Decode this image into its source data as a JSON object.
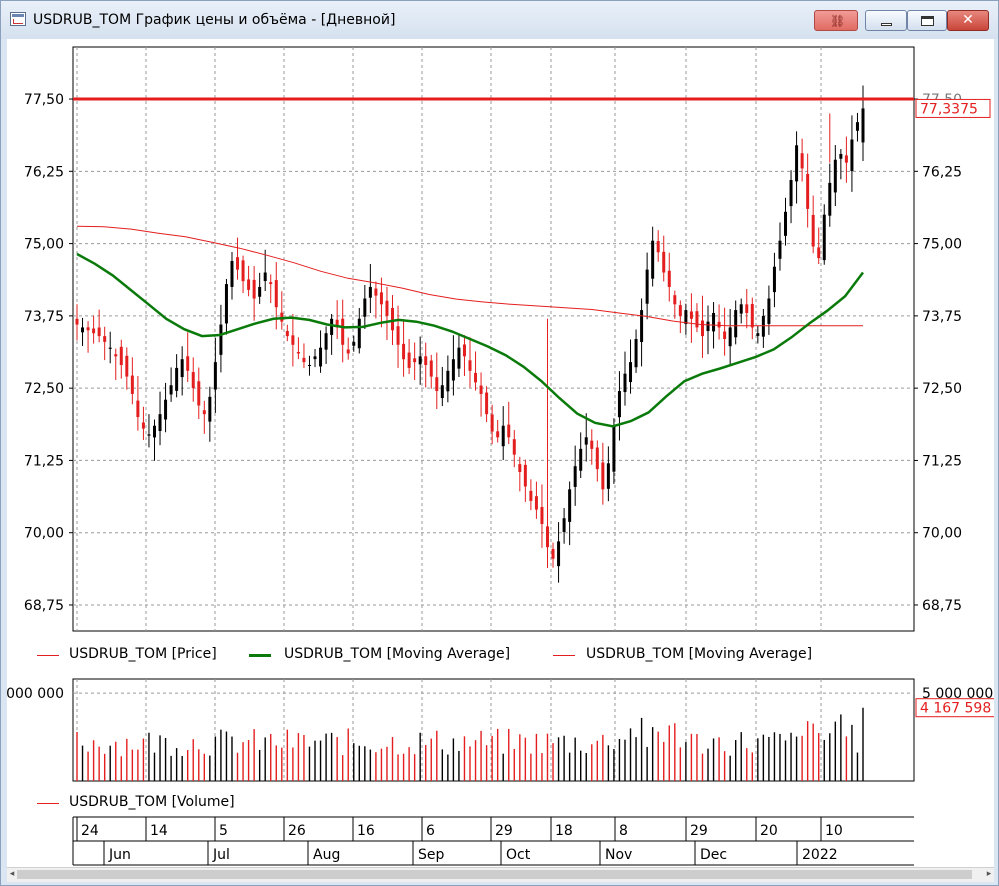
{
  "window": {
    "title": "USDRUB_TOM График цены и объёма - [Дневной]",
    "buttons": {
      "close": "✕"
    }
  },
  "colors": {
    "up": "#000000",
    "down": "#e41e1e",
    "ma_fast": "#0a7a0a",
    "ma_slow": "#e41e1e",
    "level": "#e41e1e",
    "grid": "#9a9a9a"
  },
  "price_panel": {
    "y_ticks": [
      "77,50",
      "76,25",
      "75,00",
      "73,75",
      "72,50",
      "71,25",
      "70,00",
      "68,75"
    ],
    "y_values": [
      77.5,
      76.25,
      75.0,
      73.75,
      72.5,
      71.25,
      70.0,
      68.75
    ],
    "ylim": [
      68.3,
      78.4
    ],
    "right_edge_label": "77,50",
    "last_price_label": "77,3375",
    "last_price": 77.3375,
    "horizontal_level": 77.5
  },
  "legend": {
    "price": "USDRUB_TOM [Price]",
    "ma1": "USDRUB_TOM [Moving Average]",
    "ma2": "USDRUB_TOM [Moving Average]"
  },
  "volume_panel": {
    "left_tick": "000 000",
    "right_tick": "5 000 000",
    "last_volume_label": "4 167 598",
    "legend": "USDRUB_TOM [Volume]",
    "ylim": [
      0,
      5800000
    ]
  },
  "time_axis": {
    "days": [
      "24",
      "14",
      "5",
      "26",
      "16",
      "6",
      "29",
      "18",
      "8",
      "29",
      "20",
      "10"
    ],
    "months": [
      "Jun",
      "Jul",
      "Aug",
      "Sep",
      "Oct",
      "Nov",
      "Dec",
      "2022"
    ]
  },
  "chart_data": {
    "type": "candlestick",
    "x_range": [
      "2021-05-24",
      "2022-01-14"
    ],
    "series": [
      {
        "name": "USDRUB_TOM [Price]",
        "kind": "ohlc",
        "close_path": [
          73.6,
          73.55,
          73.5,
          73.45,
          73.4,
          73.3,
          73.2,
          73.05,
          72.9,
          72.7,
          72.4,
          72.0,
          71.8,
          71.7,
          71.85,
          72.05,
          72.3,
          72.55,
          72.85,
          73.0,
          72.8,
          72.5,
          72.2,
          72.05,
          72.35,
          72.95,
          73.6,
          74.3,
          74.7,
          74.55,
          74.35,
          74.2,
          74.05,
          74.25,
          74.5,
          74.3,
          73.9,
          73.65,
          73.4,
          73.25,
          73.1,
          72.95,
          72.9,
          73.05,
          73.2,
          73.45,
          73.7,
          73.55,
          73.25,
          73.1,
          73.3,
          73.7,
          74.05,
          74.25,
          74.1,
          73.95,
          73.75,
          73.5,
          73.25,
          73.0,
          72.85,
          72.95,
          73.05,
          72.9,
          72.7,
          72.45,
          72.55,
          72.8,
          73.0,
          73.2,
          73.05,
          72.8,
          72.6,
          72.4,
          72.05,
          71.75,
          71.65,
          71.85,
          71.65,
          71.35,
          71.05,
          70.8,
          70.55,
          70.4,
          70.15,
          69.75,
          69.55,
          69.85,
          70.25,
          70.75,
          71.15,
          71.45,
          71.65,
          71.45,
          71.1,
          70.75,
          71.2,
          71.85,
          72.45,
          72.75,
          72.95,
          73.35,
          73.85,
          74.55,
          75.05,
          74.85,
          74.5,
          74.25,
          73.95,
          73.75,
          73.85,
          73.7,
          73.55,
          73.4,
          73.65,
          73.8,
          73.55,
          73.35,
          73.55,
          73.85,
          73.95,
          73.8,
          73.55,
          73.45,
          73.75,
          74.05,
          74.6,
          75.05,
          75.55,
          76.1,
          76.7,
          76.3,
          75.6,
          74.95,
          74.75,
          75.5,
          76.05,
          76.45,
          76.55,
          76.4,
          76.8,
          77.1,
          77.3375
        ]
      },
      {
        "name": "USDRUB_TOM [Moving Average]",
        "kind": "line",
        "color": "green",
        "values": [
          74.82,
          74.65,
          74.45,
          74.2,
          73.95,
          73.7,
          73.52,
          73.4,
          73.42,
          73.52,
          73.62,
          73.7,
          73.72,
          73.68,
          73.6,
          73.55,
          73.56,
          73.63,
          73.68,
          73.65,
          73.58,
          73.48,
          73.35,
          73.22,
          73.07,
          72.87,
          72.62,
          72.33,
          72.06,
          71.9,
          71.84,
          71.93,
          72.08,
          72.36,
          72.62,
          72.75,
          72.84,
          72.94,
          73.04,
          73.17,
          73.38,
          73.62,
          73.84,
          74.09,
          74.5
        ]
      },
      {
        "name": "USDRUB_TOM [Moving Average]",
        "kind": "line",
        "color": "red",
        "values": [
          75.3,
          75.29,
          75.25,
          75.18,
          75.12,
          75.02,
          74.92,
          74.8,
          74.67,
          74.52,
          74.4,
          74.32,
          74.23,
          74.12,
          74.04,
          73.99,
          73.95,
          73.92,
          73.89,
          73.86,
          73.8,
          73.74,
          73.66,
          73.6,
          73.58,
          73.58,
          73.58,
          73.58,
          73.58,
          73.58
        ]
      }
    ],
    "volume": {
      "name": "USDRUB_TOM [Volume]",
      "last": 4167598
    },
    "horizontal_line": 77.5
  }
}
